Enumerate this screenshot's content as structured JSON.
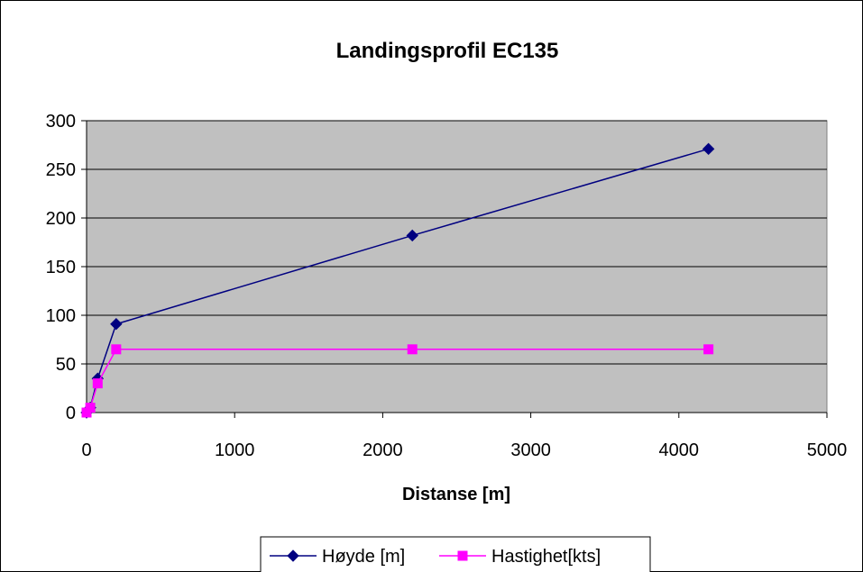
{
  "chart_data": {
    "type": "line",
    "title": "Landingsprofil EC135",
    "xlabel": "Distanse [m]",
    "ylabel": "",
    "xlim": [
      0,
      5000
    ],
    "ylim": [
      0,
      300
    ],
    "xticks": [
      0,
      1000,
      2000,
      3000,
      4000,
      5000
    ],
    "yticks": [
      0,
      50,
      100,
      150,
      200,
      250,
      300
    ],
    "grid": "horizontal",
    "legend_position": "bottom",
    "plot_background": "#c0c0c0",
    "series": [
      {
        "name": "Høyde [m]",
        "color": "#000080",
        "marker": "diamond",
        "points": [
          [
            0,
            0
          ],
          [
            25,
            5
          ],
          [
            75,
            35
          ],
          [
            200,
            91
          ],
          [
            2200,
            182
          ],
          [
            4200,
            271
          ]
        ]
      },
      {
        "name": "Hastighet[kts]",
        "color": "#ff00ff",
        "marker": "square",
        "points": [
          [
            0,
            0
          ],
          [
            25,
            5
          ],
          [
            75,
            30
          ],
          [
            200,
            65
          ],
          [
            2200,
            65
          ],
          [
            4200,
            65
          ]
        ]
      }
    ]
  }
}
